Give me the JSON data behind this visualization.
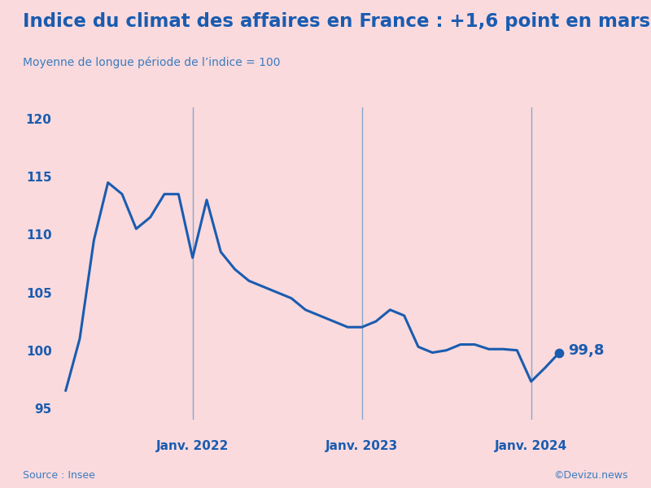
{
  "title": "Indice du climat des affaires en France : +1,6 point en mars",
  "subtitle": "Moyenne de longue période de l’indice = 100",
  "source_left": "Source : Insee",
  "source_right": "©Devizu.news",
  "background_color": "#FADADD",
  "line_color": "#1A5CB0",
  "vline_color": "#7BA3C8",
  "title_color": "#1A5CB0",
  "subtitle_color": "#3A7CC0",
  "ylim": [
    94,
    121
  ],
  "yticks": [
    95,
    100,
    105,
    110,
    115,
    120
  ],
  "vlines_x": [
    9,
    21,
    33
  ],
  "vline_labels": [
    "Janv. 2022",
    "Janv. 2023",
    "Janv. 2024"
  ],
  "last_point_label": "99,8",
  "y_values": [
    96.5,
    101.0,
    109.5,
    114.5,
    113.5,
    110.5,
    111.5,
    113.5,
    113.5,
    108.0,
    113.0,
    108.5,
    107.0,
    106.0,
    105.5,
    105.0,
    104.5,
    103.5,
    103.0,
    102.5,
    102.0,
    102.0,
    102.5,
    103.5,
    103.0,
    100.3,
    99.8,
    100.0,
    100.5,
    100.5,
    100.1,
    100.1,
    100.0,
    97.3,
    98.5,
    99.8
  ]
}
